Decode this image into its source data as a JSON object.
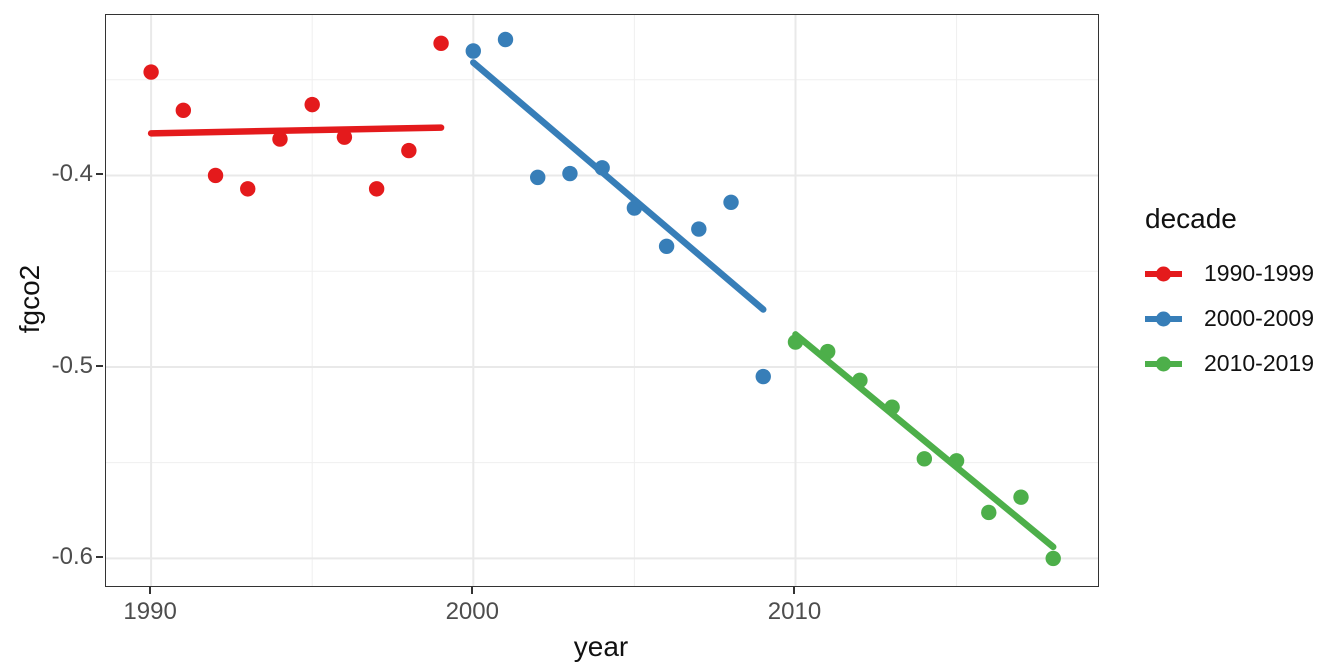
{
  "chart_data": {
    "type": "scatter",
    "title": "",
    "xlabel": "year",
    "ylabel": "fgco2",
    "xlim": [
      1988.6,
      2019.39
    ],
    "ylim": [
      -0.6144,
      -0.3162
    ],
    "grid": true,
    "legend_position": "right",
    "legend_title": "decade",
    "x_major_ticks": [
      {
        "value": 1990,
        "label": "1990"
      },
      {
        "value": 2000,
        "label": "2000"
      },
      {
        "value": 2010,
        "label": "2010"
      }
    ],
    "x_minor_gridlines": [
      1995,
      2005,
      2015
    ],
    "y_major_ticks": [
      {
        "value": -0.4,
        "label": "-0.4"
      },
      {
        "value": -0.5,
        "label": "-0.5"
      },
      {
        "value": -0.6,
        "label": "-0.6"
      }
    ],
    "y_minor_gridlines": [
      -0.35,
      -0.45,
      -0.55
    ],
    "series": [
      {
        "name": "1990-1999",
        "color": "#E41A1C",
        "x": [
          1990,
          1991,
          1992,
          1993,
          1994,
          1995,
          1996,
          1997,
          1998,
          1999
        ],
        "y": [
          -0.346,
          -0.366,
          -0.4,
          -0.407,
          -0.381,
          -0.363,
          -0.38,
          -0.407,
          -0.387,
          -0.331
        ],
        "trend": {
          "x1": 1990,
          "y1": -0.378,
          "x2": 1999,
          "y2": -0.375
        }
      },
      {
        "name": "2000-2009",
        "color": "#377EB8",
        "x": [
          2000,
          2001,
          2002,
          2003,
          2004,
          2005,
          2006,
          2007,
          2008,
          2009
        ],
        "y": [
          -0.335,
          -0.329,
          -0.401,
          -0.399,
          -0.396,
          -0.417,
          -0.437,
          -0.428,
          -0.414,
          -0.505
        ],
        "trend": {
          "x1": 2000,
          "y1": -0.341,
          "x2": 2009,
          "y2": -0.47
        }
      },
      {
        "name": "2010-2019",
        "color": "#4DAF4A",
        "x": [
          2010,
          2011,
          2012,
          2013,
          2014,
          2015,
          2016,
          2017,
          2018
        ],
        "y": [
          -0.487,
          -0.492,
          -0.507,
          -0.521,
          -0.548,
          -0.549,
          -0.576,
          -0.568,
          -0.6
        ],
        "trend": {
          "x1": 2010,
          "y1": -0.483,
          "x2": 2018,
          "y2": -0.594
        }
      }
    ],
    "style": {
      "grid_major_color": "#e9e9e9",
      "grid_minor_color": "#efefef",
      "panel_border_color": "#333333",
      "tick_label_color": "#4d4d4d",
      "point_radius": 7.7,
      "trend_line_width": 6.5
    }
  }
}
